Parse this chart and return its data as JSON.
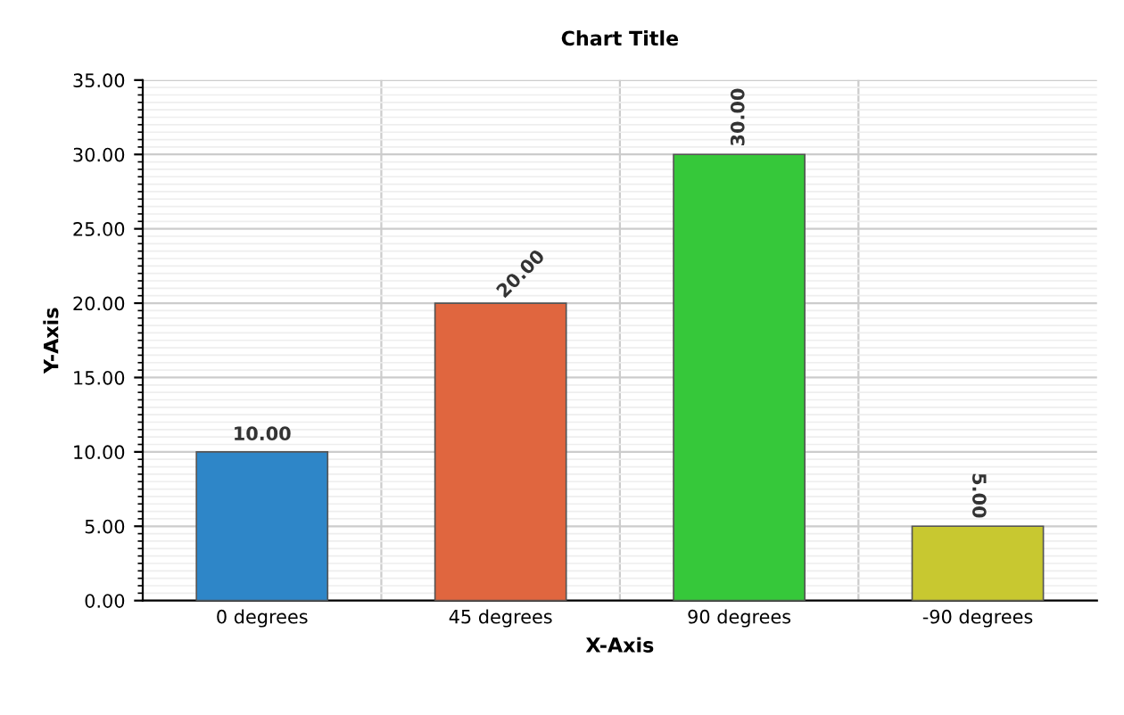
{
  "chart_data": {
    "type": "bar",
    "title": "Chart Title",
    "xlabel": "X-Axis",
    "ylabel": "Y-Axis",
    "categories": [
      "0 degrees",
      "45 degrees",
      "90 degrees",
      "-90 degrees"
    ],
    "values": [
      10,
      20,
      30,
      5
    ],
    "colors": [
      "#2e86c8",
      "#e0663f",
      "#36c83a",
      "#c8c830"
    ],
    "value_labels": [
      "10.00",
      "20.00",
      "30.00",
      "5.00"
    ],
    "ylim": [
      0,
      35
    ],
    "yticks": [
      {
        "value": 0,
        "label": "0.00"
      },
      {
        "value": 5,
        "label": "5.00"
      },
      {
        "value": 10,
        "label": "10.00"
      },
      {
        "value": 15,
        "label": "15.00"
      },
      {
        "value": 20,
        "label": "20.00"
      },
      {
        "value": 25,
        "label": "25.00"
      },
      {
        "value": 30,
        "label": "30.00"
      },
      {
        "value": 35,
        "label": "35.00"
      }
    ],
    "grid": true,
    "legend": false
  }
}
